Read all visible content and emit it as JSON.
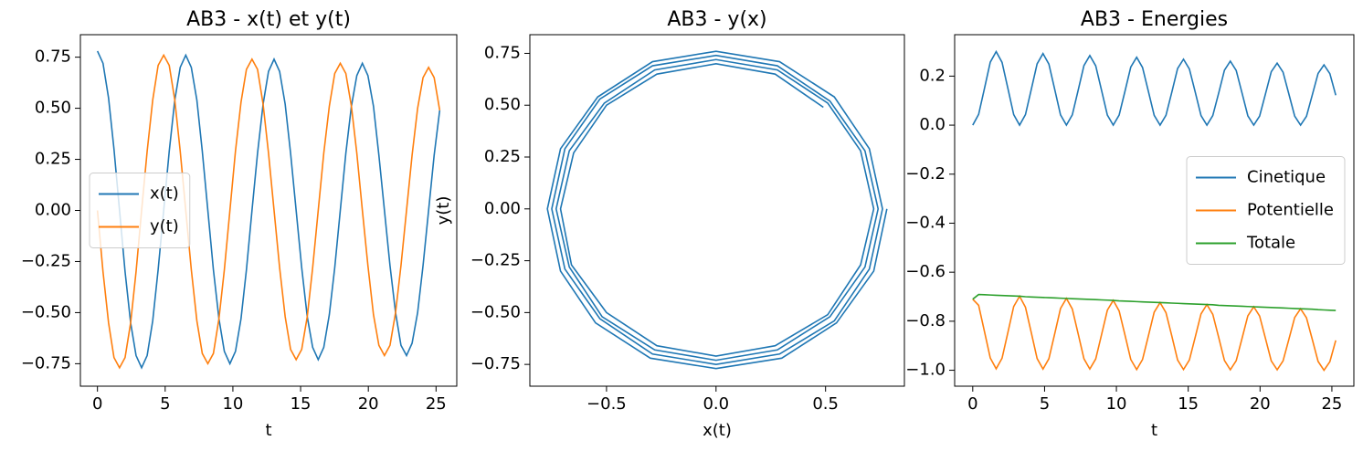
{
  "chart_data": [
    {
      "type": "line",
      "title": "AB3 - x(t) et y(t)",
      "xlabel": "t",
      "legend": "center left",
      "x": [
        0,
        0.41,
        0.82,
        1.22,
        1.63,
        2.04,
        2.45,
        2.85,
        3.26,
        3.67,
        4.08,
        4.48,
        4.89,
        5.3,
        5.71,
        6.11,
        6.52,
        6.93,
        7.34,
        7.74,
        8.15,
        8.56,
        8.97,
        9.37,
        9.78,
        10.19,
        10.6,
        11.0,
        11.41,
        11.82,
        12.23,
        12.63,
        13.04,
        13.45,
        13.86,
        14.26,
        14.67,
        15.08,
        15.49,
        15.89,
        16.3,
        16.71,
        17.12,
        17.52,
        17.93,
        18.34,
        18.75,
        19.15,
        19.56,
        19.97,
        20.38,
        20.78,
        21.19,
        21.6,
        22.01,
        22.41,
        22.82,
        23.23,
        23.64,
        24.04,
        24.45,
        24.86,
        25.27
      ],
      "series": [
        {
          "name": "x(t)",
          "color": "#1f77b4",
          "values": [
            0.78,
            0.72,
            0.55,
            0.3,
            0,
            -0.3,
            -0.55,
            -0.71,
            -0.77,
            -0.71,
            -0.54,
            -0.29,
            0,
            0.29,
            0.54,
            0.7,
            0.76,
            0.7,
            0.54,
            0.29,
            0,
            -0.29,
            -0.53,
            -0.69,
            -0.75,
            -0.69,
            -0.53,
            -0.29,
            0,
            0.28,
            0.52,
            0.68,
            0.74,
            0.68,
            0.52,
            0.28,
            0,
            -0.28,
            -0.52,
            -0.67,
            -0.73,
            -0.67,
            -0.51,
            -0.28,
            0,
            0.28,
            0.51,
            0.66,
            0.72,
            0.66,
            0.51,
            0.27,
            0,
            -0.27,
            -0.5,
            -0.66,
            -0.71,
            -0.65,
            -0.5,
            -0.27,
            0,
            0.27,
            0.49
          ]
        },
        {
          "name": "y(t)",
          "color": "#ff7f0e",
          "values": [
            0,
            -0.3,
            -0.55,
            -0.72,
            -0.77,
            -0.72,
            -0.55,
            -0.3,
            0,
            0.29,
            0.54,
            0.71,
            0.76,
            0.71,
            0.54,
            0.29,
            0,
            -0.29,
            -0.54,
            -0.7,
            -0.75,
            -0.7,
            -0.53,
            -0.29,
            0,
            0.29,
            0.53,
            0.69,
            0.74,
            0.69,
            0.52,
            0.28,
            0,
            -0.28,
            -0.52,
            -0.68,
            -0.73,
            -0.68,
            -0.52,
            -0.28,
            0,
            0.28,
            0.51,
            0.67,
            0.72,
            0.67,
            0.51,
            0.28,
            0,
            -0.27,
            -0.51,
            -0.66,
            -0.71,
            -0.66,
            -0.5,
            -0.27,
            0,
            0.27,
            0.5,
            0.65,
            0.7,
            0.65,
            0.49
          ]
        }
      ],
      "xlim": [
        -1.26,
        26.53
      ],
      "ylim": [
        -0.86,
        0.86
      ],
      "xticks": [
        0,
        5,
        10,
        15,
        20,
        25
      ],
      "yticks": [
        {
          "value": -0.75,
          "label": "−0.75"
        },
        {
          "value": -0.5,
          "label": "−0.50"
        },
        {
          "value": -0.25,
          "label": "−0.25"
        },
        {
          "value": 0,
          "label": "0.00"
        },
        0.25,
        {
          "value": 0.5,
          "label": "0.50"
        },
        0.75
      ]
    },
    {
      "type": "line",
      "title": "AB3 - y(x)",
      "xlabel": "x(t)",
      "ylabel": "y(t)",
      "x": [
        0.78,
        0.72,
        0.55,
        0.3,
        0,
        -0.3,
        -0.55,
        -0.71,
        -0.77,
        -0.71,
        -0.54,
        -0.29,
        0,
        0.29,
        0.54,
        0.7,
        0.76,
        0.7,
        0.54,
        0.29,
        0,
        -0.29,
        -0.53,
        -0.69,
        -0.75,
        -0.69,
        -0.53,
        -0.29,
        0,
        0.28,
        0.52,
        0.68,
        0.74,
        0.68,
        0.52,
        0.28,
        0,
        -0.28,
        -0.52,
        -0.67,
        -0.73,
        -0.67,
        -0.51,
        -0.28,
        0,
        0.28,
        0.51,
        0.66,
        0.72,
        0.66,
        0.51,
        0.27,
        0,
        -0.27,
        -0.5,
        -0.66,
        -0.71,
        -0.65,
        -0.5,
        -0.27,
        0,
        0.27,
        0.49
      ],
      "series": [
        {
          "color": "#1f77b4",
          "values": [
            0,
            -0.3,
            -0.55,
            -0.72,
            -0.77,
            -0.72,
            -0.55,
            -0.3,
            0,
            0.29,
            0.54,
            0.71,
            0.76,
            0.71,
            0.54,
            0.29,
            0,
            -0.29,
            -0.54,
            -0.7,
            -0.75,
            -0.7,
            -0.53,
            -0.29,
            0,
            0.29,
            0.53,
            0.69,
            0.74,
            0.69,
            0.52,
            0.28,
            0,
            -0.28,
            -0.52,
            -0.68,
            -0.73,
            -0.68,
            -0.52,
            -0.28,
            0,
            0.28,
            0.51,
            0.67,
            0.72,
            0.67,
            0.51,
            0.28,
            0,
            -0.27,
            -0.51,
            -0.66,
            -0.71,
            -0.66,
            -0.5,
            -0.27,
            0,
            0.27,
            0.5,
            0.65,
            0.7,
            0.65,
            0.49
          ]
        }
      ],
      "xlim": [
        -0.85,
        0.86
      ],
      "ylim": [
        -0.855,
        0.84
      ],
      "xticks": [
        {
          "value": -0.5,
          "label": "−0.5"
        },
        {
          "value": 0,
          "label": "0.0"
        },
        0.5
      ],
      "yticks": [
        {
          "value": -0.75,
          "label": "−0.75"
        },
        {
          "value": -0.5,
          "label": "−0.50"
        },
        {
          "value": -0.25,
          "label": "−0.25"
        },
        {
          "value": 0,
          "label": "0.00"
        },
        0.25,
        {
          "value": 0.5,
          "label": "0.50"
        },
        0.75
      ]
    },
    {
      "type": "line",
      "title": "AB3 - Energies",
      "xlabel": "t",
      "legend": "center right",
      "x": [
        0,
        0.41,
        0.82,
        1.22,
        1.63,
        2.04,
        2.45,
        2.85,
        3.26,
        3.67,
        4.08,
        4.48,
        4.89,
        5.3,
        5.71,
        6.11,
        6.52,
        6.93,
        7.34,
        7.74,
        8.15,
        8.56,
        8.97,
        9.37,
        9.78,
        10.19,
        10.6,
        11.0,
        11.41,
        11.82,
        12.23,
        12.63,
        13.04,
        13.45,
        13.86,
        14.26,
        14.67,
        15.08,
        15.49,
        15.89,
        16.3,
        16.71,
        17.12,
        17.52,
        17.93,
        18.34,
        18.75,
        19.15,
        19.56,
        19.97,
        20.38,
        20.78,
        21.19,
        21.6,
        22.01,
        22.41,
        22.82,
        23.23,
        23.64,
        24.04,
        24.45,
        24.86,
        25.27
      ],
      "series": [
        {
          "name": "Cinetique",
          "color": "#1f77b4",
          "values": [
            0,
            0.044,
            0.151,
            0.257,
            0.3,
            0.256,
            0.149,
            0.043,
            0,
            0.043,
            0.147,
            0.25,
            0.292,
            0.249,
            0.145,
            0.042,
            0,
            0.042,
            0.143,
            0.243,
            0.284,
            0.242,
            0.141,
            0.041,
            0,
            0.041,
            0.139,
            0.237,
            0.277,
            0.235,
            0.137,
            0.04,
            0,
            0.04,
            0.135,
            0.231,
            0.269,
            0.229,
            0.134,
            0.039,
            0,
            0.039,
            0.131,
            0.224,
            0.261,
            0.223,
            0.13,
            0.038,
            0,
            0.037,
            0.128,
            0.218,
            0.253,
            0.216,
            0.126,
            0.037,
            0,
            0.036,
            0.124,
            0.211,
            0.246,
            0.21,
            0.122
          ]
        },
        {
          "name": "Potentielle",
          "color": "#ff7f0e",
          "values": [
            -0.71,
            -0.735,
            -0.843,
            -0.95,
            -0.994,
            -0.951,
            -0.845,
            -0.74,
            -0.698,
            -0.743,
            -0.848,
            -0.952,
            -0.995,
            -0.953,
            -0.85,
            -0.748,
            -0.707,
            -0.75,
            -0.852,
            -0.953,
            -0.995,
            -0.954,
            -0.854,
            -0.755,
            -0.715,
            -0.758,
            -0.857,
            -0.956,
            -0.997,
            -0.956,
            -0.859,
            -0.763,
            -0.724,
            -0.765,
            -0.861,
            -0.958,
            -0.997,
            -0.958,
            -0.864,
            -0.77,
            -0.732,
            -0.772,
            -0.866,
            -0.96,
            -0.998,
            -0.961,
            -0.869,
            -0.778,
            -0.741,
            -0.779,
            -0.871,
            -0.962,
            -0.998,
            -0.962,
            -0.873,
            -0.785,
            -0.749,
            -0.786,
            -0.875,
            -0.964,
            -1.0,
            -0.965,
            -0.878
          ]
        },
        {
          "name": "Totale",
          "color": "#2ca02c",
          "values": [
            -0.71,
            -0.691,
            -0.692,
            -0.693,
            -0.694,
            -0.695,
            -0.696,
            -0.697,
            -0.698,
            -0.7,
            -0.701,
            -0.702,
            -0.703,
            -0.704,
            -0.705,
            -0.706,
            -0.707,
            -0.708,
            -0.709,
            -0.71,
            -0.711,
            -0.712,
            -0.713,
            -0.714,
            -0.715,
            -0.717,
            -0.718,
            -0.719,
            -0.72,
            -0.721,
            -0.722,
            -0.723,
            -0.724,
            -0.725,
            -0.726,
            -0.727,
            -0.728,
            -0.729,
            -0.73,
            -0.731,
            -0.732,
            -0.733,
            -0.735,
            -0.736,
            -0.737,
            -0.738,
            -0.739,
            -0.74,
            -0.741,
            -0.742,
            -0.743,
            -0.744,
            -0.745,
            -0.746,
            -0.747,
            -0.748,
            -0.749,
            -0.75,
            -0.751,
            -0.753,
            -0.754,
            -0.755,
            -0.756
          ]
        }
      ],
      "xlim": [
        -1.26,
        26.53
      ],
      "ylim": [
        -1.065,
        0.369
      ],
      "xticks": [
        0,
        5,
        10,
        15,
        20,
        25
      ],
      "yticks": [
        {
          "value": -1.0,
          "label": "−1.0"
        },
        {
          "value": -0.8,
          "label": "−0.8"
        },
        {
          "value": -0.6,
          "label": "−0.6"
        },
        {
          "value": -0.4,
          "label": "−0.4"
        },
        {
          "value": -0.2,
          "label": "−0.2"
        },
        {
          "value": 0,
          "label": "0.0"
        },
        0.2
      ]
    }
  ]
}
